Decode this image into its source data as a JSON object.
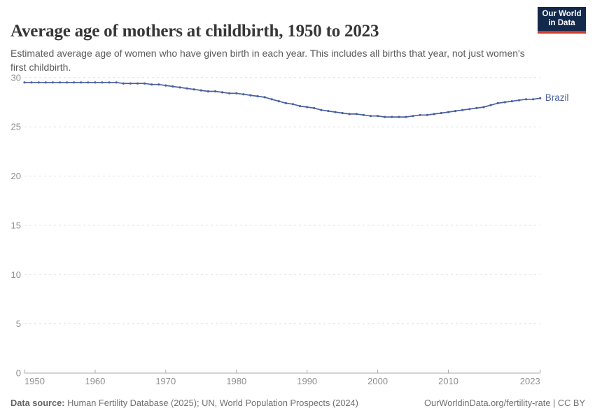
{
  "header": {
    "title": "Average age of mothers at childbirth, 1950 to 2023",
    "subtitle": "Estimated average age of women who have given birth in each year. This includes all births that year, not just women's first childbirth.",
    "logo": {
      "line1": "Our World",
      "line2": "in Data"
    }
  },
  "footer": {
    "datasource_label": "Data source:",
    "datasource_value": " Human Fertility Database (2025); UN, World Population Prospects (2024)",
    "credit": "OurWorldinData.org/fertility-rate | CC BY"
  },
  "colors": {
    "line": "#4b619e",
    "grid": "#e0e0e0",
    "axis": "#a8a8a8",
    "tick_label": "#8e8e8e",
    "logo_navy": "#13294b",
    "logo_red": "#d23a2b"
  },
  "chart_data": {
    "type": "line",
    "title": "Average age of mothers at childbirth, 1950 to 2023",
    "xlabel": "",
    "ylabel": "",
    "xlim": [
      1950,
      2023
    ],
    "ylim": [
      0,
      30
    ],
    "xticks": [
      1950,
      1960,
      1970,
      1980,
      1990,
      2000,
      2010,
      2023
    ],
    "yticks": [
      0,
      5,
      10,
      15,
      20,
      25,
      30
    ],
    "grid": "horizontal-dashed",
    "legend": "end-of-line-label",
    "x": [
      1950,
      1951,
      1952,
      1953,
      1954,
      1955,
      1956,
      1957,
      1958,
      1959,
      1960,
      1961,
      1962,
      1963,
      1964,
      1965,
      1966,
      1967,
      1968,
      1969,
      1970,
      1971,
      1972,
      1973,
      1974,
      1975,
      1976,
      1977,
      1978,
      1979,
      1980,
      1981,
      1982,
      1983,
      1984,
      1985,
      1986,
      1987,
      1988,
      1989,
      1990,
      1991,
      1992,
      1993,
      1994,
      1995,
      1996,
      1997,
      1998,
      1999,
      2000,
      2001,
      2002,
      2003,
      2004,
      2005,
      2006,
      2007,
      2008,
      2009,
      2010,
      2011,
      2012,
      2013,
      2014,
      2015,
      2016,
      2017,
      2018,
      2019,
      2020,
      2021,
      2022,
      2023
    ],
    "series": [
      {
        "name": "Brazil",
        "values": [
          29.5,
          29.5,
          29.5,
          29.5,
          29.5,
          29.5,
          29.5,
          29.5,
          29.5,
          29.5,
          29.5,
          29.5,
          29.5,
          29.5,
          29.4,
          29.4,
          29.4,
          29.4,
          29.3,
          29.3,
          29.2,
          29.1,
          29.0,
          28.9,
          28.8,
          28.7,
          28.6,
          28.6,
          28.5,
          28.4,
          28.4,
          28.3,
          28.2,
          28.1,
          28.0,
          27.8,
          27.6,
          27.4,
          27.3,
          27.1,
          27.0,
          26.9,
          26.7,
          26.6,
          26.5,
          26.4,
          26.3,
          26.3,
          26.2,
          26.1,
          26.1,
          26.0,
          26.0,
          26.0,
          26.0,
          26.1,
          26.2,
          26.2,
          26.3,
          26.4,
          26.5,
          26.6,
          26.7,
          26.8,
          26.9,
          27.0,
          27.2,
          27.4,
          27.5,
          27.6,
          27.7,
          27.8,
          27.8,
          27.9
        ]
      }
    ]
  }
}
